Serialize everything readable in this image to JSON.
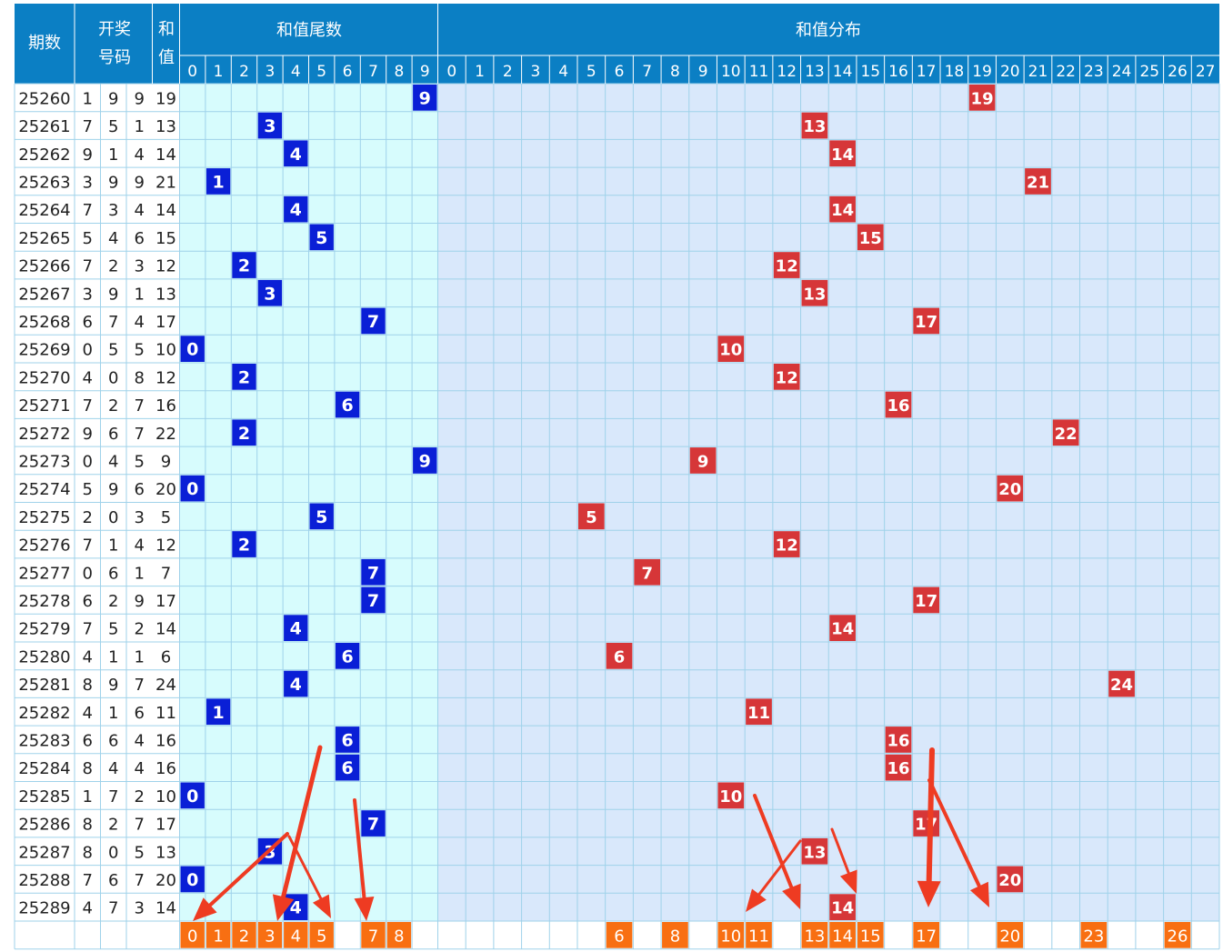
{
  "header": {
    "issue": "期数",
    "draw_line1": "开奖",
    "draw_line2": "号码",
    "sum_line1": "和",
    "sum_line2": "值",
    "tail_group": "和值尾数",
    "dist_group": "和值分布"
  },
  "tail_columns": [
    "0",
    "1",
    "2",
    "3",
    "4",
    "5",
    "6",
    "7",
    "8",
    "9"
  ],
  "sum_columns": [
    "0",
    "1",
    "2",
    "3",
    "4",
    "5",
    "6",
    "7",
    "8",
    "9",
    "10",
    "11",
    "12",
    "13",
    "14",
    "15",
    "16",
    "17",
    "18",
    "19",
    "20",
    "21",
    "22",
    "23",
    "24",
    "25",
    "26",
    "27"
  ],
  "chart_data": {
    "type": "table",
    "columns": [
      "期数",
      "开奖号码",
      "和值",
      "和值尾数",
      "和值分布"
    ],
    "rows": [
      {
        "issue": "25260",
        "digits": [
          1,
          9,
          9
        ],
        "sum": 19
      },
      {
        "issue": "25261",
        "digits": [
          7,
          5,
          1
        ],
        "sum": 13
      },
      {
        "issue": "25262",
        "digits": [
          9,
          1,
          4
        ],
        "sum": 14
      },
      {
        "issue": "25263",
        "digits": [
          3,
          9,
          9
        ],
        "sum": 21
      },
      {
        "issue": "25264",
        "digits": [
          7,
          3,
          4
        ],
        "sum": 14
      },
      {
        "issue": "25265",
        "digits": [
          5,
          4,
          6
        ],
        "sum": 15
      },
      {
        "issue": "25266",
        "digits": [
          7,
          2,
          3
        ],
        "sum": 12
      },
      {
        "issue": "25267",
        "digits": [
          3,
          9,
          1
        ],
        "sum": 13
      },
      {
        "issue": "25268",
        "digits": [
          6,
          7,
          4
        ],
        "sum": 17
      },
      {
        "issue": "25269",
        "digits": [
          0,
          5,
          5
        ],
        "sum": 10
      },
      {
        "issue": "25270",
        "digits": [
          4,
          0,
          8
        ],
        "sum": 12
      },
      {
        "issue": "25271",
        "digits": [
          7,
          2,
          7
        ],
        "sum": 16
      },
      {
        "issue": "25272",
        "digits": [
          9,
          6,
          7
        ],
        "sum": 22
      },
      {
        "issue": "25273",
        "digits": [
          0,
          4,
          5
        ],
        "sum": 9
      },
      {
        "issue": "25274",
        "digits": [
          5,
          9,
          6
        ],
        "sum": 20
      },
      {
        "issue": "25275",
        "digits": [
          2,
          0,
          3
        ],
        "sum": 5
      },
      {
        "issue": "25276",
        "digits": [
          7,
          1,
          4
        ],
        "sum": 12
      },
      {
        "issue": "25277",
        "digits": [
          0,
          6,
          1
        ],
        "sum": 7
      },
      {
        "issue": "25278",
        "digits": [
          6,
          2,
          9
        ],
        "sum": 17
      },
      {
        "issue": "25279",
        "digits": [
          7,
          5,
          2
        ],
        "sum": 14
      },
      {
        "issue": "25280",
        "digits": [
          4,
          1,
          1
        ],
        "sum": 6
      },
      {
        "issue": "25281",
        "digits": [
          8,
          9,
          7
        ],
        "sum": 24
      },
      {
        "issue": "25282",
        "digits": [
          4,
          1,
          6
        ],
        "sum": 11
      },
      {
        "issue": "25283",
        "digits": [
          6,
          6,
          4
        ],
        "sum": 16
      },
      {
        "issue": "25284",
        "digits": [
          8,
          4,
          4
        ],
        "sum": 16
      },
      {
        "issue": "25285",
        "digits": [
          1,
          7,
          2
        ],
        "sum": 10
      },
      {
        "issue": "25286",
        "digits": [
          8,
          2,
          7
        ],
        "sum": 17
      },
      {
        "issue": "25287",
        "digits": [
          8,
          0,
          5
        ],
        "sum": 13
      },
      {
        "issue": "25288",
        "digits": [
          7,
          6,
          7
        ],
        "sum": 20
      },
      {
        "issue": "25289",
        "digits": [
          4,
          7,
          3
        ],
        "sum": 14
      }
    ],
    "prediction_tails": [
      0,
      1,
      2,
      3,
      4,
      5,
      7,
      8
    ],
    "prediction_sums": [
      6,
      8,
      10,
      11,
      13,
      14,
      15,
      17,
      20,
      23,
      26
    ]
  },
  "colors": {
    "header_bg": "#0b7fc4",
    "header_text": "#ffffff",
    "tail_bg": "#d7fcfd",
    "dist_bg": "#d9e8fb",
    "grid": "#9fd2ea",
    "tail_mark": "#0a1fd6",
    "sum_mark": "#d63638",
    "prediction_mark": "#f86f12",
    "annotation_arrow": "#ee3b22"
  }
}
